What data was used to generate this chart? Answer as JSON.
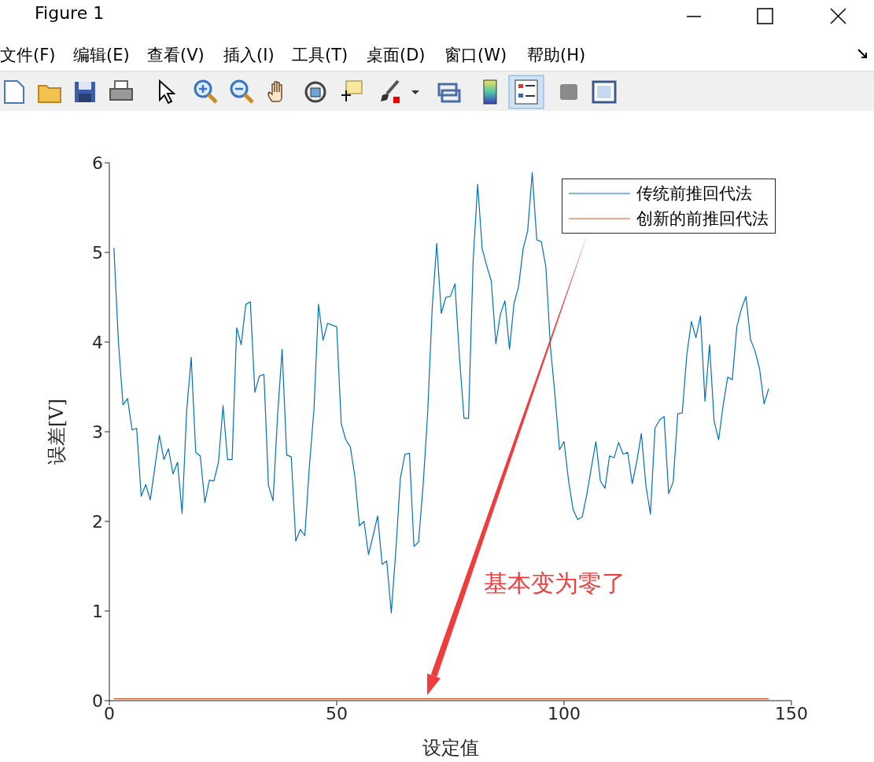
{
  "chart_data": {
    "type": "line",
    "xlabel": "设定值",
    "ylabel": "误差[V]",
    "x": [
      1,
      2,
      3,
      4,
      5,
      6,
      7,
      8,
      9,
      10,
      11,
      12,
      13,
      14,
      15,
      16,
      17,
      18,
      19,
      20,
      21,
      22,
      23,
      24,
      25,
      26,
      27,
      28,
      29,
      30,
      31,
      32,
      33,
      34,
      35,
      36,
      37,
      38,
      39,
      40,
      41,
      42,
      43,
      44,
      45,
      46,
      47,
      48,
      49,
      50,
      51,
      52,
      53,
      54,
      55,
      56,
      57,
      58,
      59,
      60,
      61,
      62,
      63,
      64,
      65,
      66,
      67,
      68,
      69,
      70,
      71,
      72,
      73,
      74,
      75,
      76,
      77,
      78,
      79,
      80,
      81,
      82,
      83,
      84,
      85,
      86,
      87,
      88,
      89,
      90,
      91,
      92,
      93,
      94,
      95,
      96,
      97,
      98,
      99,
      100,
      101,
      102,
      103,
      104,
      105,
      106,
      107,
      108,
      109,
      110,
      111,
      112,
      113,
      114,
      115,
      116,
      117,
      118,
      119,
      120,
      121,
      122,
      123,
      124,
      125,
      126,
      127,
      128,
      129,
      130,
      131,
      132,
      133,
      134,
      135,
      136,
      137,
      138,
      139,
      140,
      141,
      142,
      143,
      144,
      145
    ],
    "series": [
      {
        "name": "传统前推回代法",
        "color": "#0072bd",
        "values": [
          5.05,
          4.0,
          3.3,
          3.37,
          3.02,
          3.04,
          2.28,
          2.41,
          2.24,
          2.6,
          2.96,
          2.69,
          2.81,
          2.53,
          2.66,
          2.09,
          3.23,
          3.83,
          2.77,
          2.73,
          2.21,
          2.46,
          2.45,
          2.66,
          3.29,
          2.69,
          2.69,
          4.16,
          3.97,
          4.42,
          4.45,
          3.44,
          3.62,
          3.64,
          2.4,
          2.23,
          3.18,
          3.92,
          2.74,
          2.72,
          1.78,
          1.91,
          1.84,
          2.62,
          3.25,
          4.42,
          4.02,
          4.21,
          4.19,
          4.17,
          3.09,
          2.91,
          2.83,
          2.5,
          1.95,
          2.0,
          1.63,
          1.84,
          2.06,
          1.52,
          1.56,
          0.98,
          1.67,
          2.48,
          2.75,
          2.76,
          1.72,
          1.77,
          2.4,
          3.2,
          4.38,
          5.1,
          4.32,
          4.5,
          4.51,
          4.65,
          3.83,
          3.15,
          3.15,
          4.9,
          5.76,
          5.04,
          4.85,
          4.68,
          3.98,
          4.31,
          4.46,
          3.92,
          4.43,
          4.62,
          5.04,
          5.24,
          5.89,
          5.14,
          5.12,
          4.84,
          3.95,
          3.41,
          2.8,
          2.89,
          2.45,
          2.13,
          2.02,
          2.05,
          2.3,
          2.6,
          2.89,
          2.45,
          2.37,
          2.73,
          2.71,
          2.88,
          2.75,
          2.77,
          2.42,
          2.67,
          2.98,
          2.4,
          2.08,
          3.04,
          3.13,
          3.17,
          2.31,
          2.44,
          3.2,
          3.21,
          3.86,
          4.23,
          4.05,
          4.29,
          3.34,
          3.97,
          3.12,
          2.91,
          3.3,
          3.61,
          3.58,
          4.17,
          4.37,
          4.51,
          4.03,
          3.9,
          3.7,
          3.31,
          3.48
        ]
      },
      {
        "name": "创新的前推回代法",
        "color": "#d95319",
        "values": [
          0.02,
          0.02,
          0.02,
          0.02,
          0.02,
          0.02,
          0.02,
          0.02,
          0.02,
          0.02,
          0.02,
          0.02,
          0.02,
          0.02,
          0.02,
          0.02,
          0.02,
          0.02,
          0.02,
          0.02,
          0.02,
          0.02,
          0.02,
          0.02,
          0.02,
          0.02,
          0.02,
          0.02,
          0.02,
          0.02,
          0.02,
          0.02,
          0.02,
          0.02,
          0.02,
          0.02,
          0.02,
          0.02,
          0.02,
          0.02,
          0.02,
          0.02,
          0.02,
          0.02,
          0.02,
          0.02,
          0.02,
          0.02,
          0.02,
          0.02,
          0.02,
          0.02,
          0.02,
          0.02,
          0.02,
          0.02,
          0.02,
          0.02,
          0.02,
          0.02,
          0.02,
          0.02,
          0.02,
          0.02,
          0.02,
          0.02,
          0.02,
          0.02,
          0.02,
          0.02,
          0.02,
          0.02,
          0.02,
          0.02,
          0.02,
          0.02,
          0.02,
          0.02,
          0.02,
          0.02,
          0.02,
          0.02,
          0.02,
          0.02,
          0.02,
          0.02,
          0.02,
          0.02,
          0.02,
          0.02,
          0.02,
          0.02,
          0.02,
          0.02,
          0.02,
          0.02,
          0.02,
          0.02,
          0.02,
          0.02,
          0.02,
          0.02,
          0.02,
          0.02,
          0.02,
          0.02,
          0.02,
          0.02,
          0.02,
          0.02,
          0.02,
          0.02,
          0.02,
          0.02,
          0.02,
          0.02,
          0.02,
          0.02,
          0.02,
          0.02,
          0.02,
          0.02,
          0.02,
          0.02,
          0.02,
          0.02,
          0.02,
          0.02,
          0.02,
          0.02,
          0.02,
          0.02,
          0.02,
          0.02,
          0.02,
          0.02,
          0.02,
          0.02,
          0.02,
          0.02,
          0.02,
          0.02,
          0.02,
          0.02,
          0.02
        ]
      }
    ],
    "xlim": [
      0,
      150
    ],
    "xticks": [
      0,
      50,
      100,
      150
    ],
    "ylim": [
      0,
      6
    ],
    "yticks": [
      0,
      1,
      2,
      3,
      4,
      5,
      6
    ],
    "legend": "top right",
    "annotations": [
      "Figure 1",
      "文件(F)",
      "编辑(E)",
      "查看(V)",
      "插入(I)",
      "工具(T)",
      "桌面(D)",
      "窗口(W)",
      "帮助(H)",
      "基本变为零了"
    ]
  }
}
